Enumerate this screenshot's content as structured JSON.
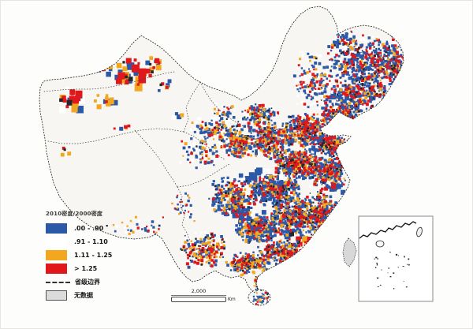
{
  "legend": {
    "title": "2010密度/2000密度",
    "items": [
      {
        "label": ".00 - .90",
        "color": "#2B59A8"
      },
      {
        "label": ".91 - 1.10",
        "color": "#FFFFFF"
      },
      {
        "label": "1.11 - 1.25",
        "color": "#F3A71E"
      },
      {
        "label": "> 1.25",
        "color": "#E0181C"
      }
    ],
    "boundary_label": "省级边界",
    "nodata_label": "无数据",
    "nodata_color": "#DBDBDB"
  },
  "scalebar": {
    "distance": "2,000",
    "unit": "Km"
  },
  "map": {
    "dark_speckle_color": "#23262B",
    "land_fill": "#F7F6F2",
    "boundary_color": "#2B2B2B"
  }
}
